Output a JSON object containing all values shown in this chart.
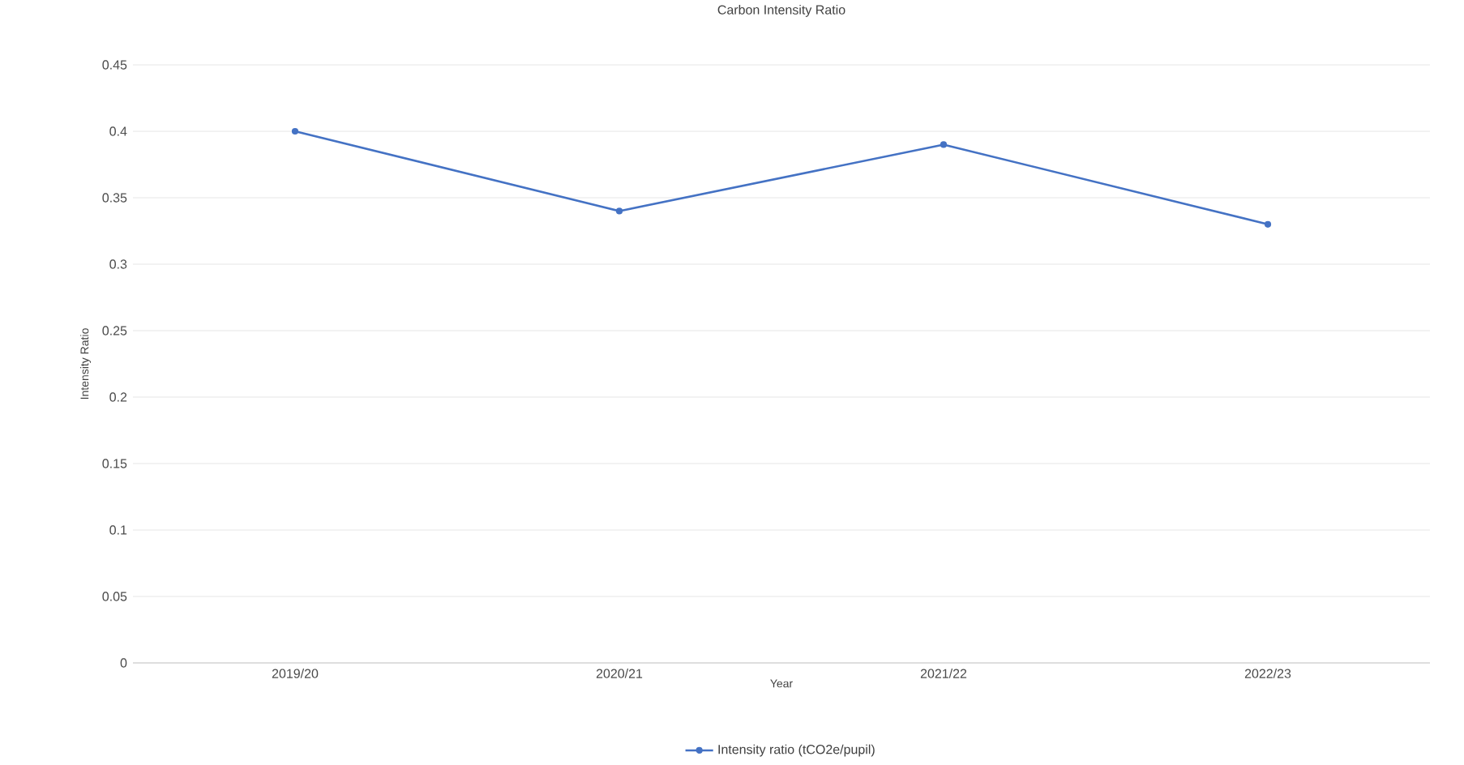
{
  "chart_data": {
    "type": "line",
    "title": "Carbon Intensity Ratio",
    "xlabel": "Year",
    "ylabel": "Intensity Ratio",
    "categories": [
      "2019/20",
      "2020/21",
      "2021/22",
      "2022/23"
    ],
    "series": [
      {
        "name": "Intensity ratio (tCO2e/pupil)",
        "color": "#4472c4",
        "values": [
          0.4,
          0.34,
          0.39,
          0.33
        ]
      }
    ],
    "ylim": [
      0,
      0.45
    ],
    "yticks": [
      0,
      0.05,
      0.1,
      0.15,
      0.2,
      0.25,
      0.3,
      0.35,
      0.4,
      0.45
    ],
    "grid": "y",
    "legend": "bottom",
    "marker": "circle",
    "line_style": "solid"
  }
}
